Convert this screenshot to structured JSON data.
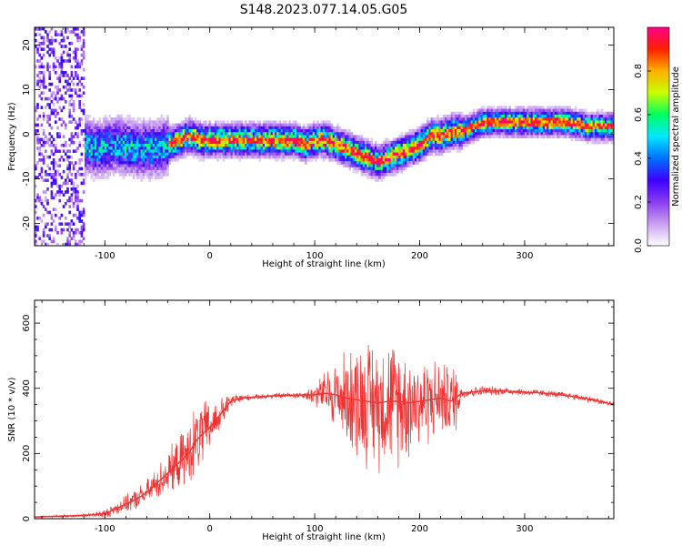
{
  "title": "S148.2023.077.14.05.G05",
  "chart_data": [
    {
      "type": "heatmap",
      "xlabel": "Height of straight line (km)",
      "ylabel": "Frequency (Hz)",
      "xlim": [
        -167,
        385
      ],
      "ylim": [
        -25,
        24
      ],
      "xticks": [
        -100,
        0,
        100,
        200,
        300
      ],
      "yticks": [
        -20,
        -10,
        0,
        10,
        20
      ],
      "colorbar": {
        "label": "Normalized spectral amplitude",
        "range": [
          0,
          1
        ],
        "ticks": [
          "0.0",
          "0.2",
          "0.4",
          "0.6",
          "0.8"
        ],
        "colors": [
          "#ffffff",
          "#c9a0f0",
          "#8a3cf0",
          "#3c00ff",
          "#0070ff",
          "#00e8ff",
          "#00ff60",
          "#c8ff00",
          "#ffb000",
          "#ff2000",
          "#ff0088"
        ]
      },
      "ridge": {
        "x": [
          -125,
          -110,
          -90,
          -70,
          -50,
          -40,
          -30,
          -20,
          -10,
          0,
          20,
          40,
          60,
          80,
          90,
          100,
          110,
          120,
          130,
          140,
          150,
          160,
          170,
          180,
          190,
          200,
          210,
          220,
          230,
          240,
          250,
          260,
          280,
          300,
          320,
          340,
          360,
          385
        ],
        "y": [
          -2,
          -3,
          -2,
          -3,
          -3,
          -2,
          -1,
          0,
          -1,
          -1,
          -1,
          -1,
          -1,
          -1,
          -2,
          -1,
          -1,
          -2,
          -3,
          -4,
          -5,
          -6,
          -5,
          -4,
          -3,
          -2,
          0,
          0,
          1,
          1,
          2,
          3,
          3,
          3,
          3,
          3,
          2,
          2
        ]
      }
    },
    {
      "type": "line",
      "xlabel": "Height of straight line (km)",
      "ylabel": "SNR (10 * v/v)",
      "xlim": [
        -167,
        385
      ],
      "ylim": [
        0,
        670
      ],
      "xticks": [
        -100,
        0,
        100,
        200,
        300
      ],
      "yticks": [
        0,
        200,
        400,
        600
      ],
      "color": "#f03232",
      "x": [
        -167,
        -140,
        -120,
        -100,
        -90,
        -80,
        -70,
        -60,
        -50,
        -40,
        -30,
        -20,
        -15,
        -10,
        0,
        10,
        20,
        30,
        50,
        70,
        90,
        100,
        110,
        120,
        130,
        140,
        150,
        160,
        170,
        180,
        190,
        200,
        210,
        220,
        230,
        240,
        260,
        280,
        300,
        320,
        340,
        360,
        385
      ],
      "y": [
        5,
        8,
        10,
        15,
        30,
        45,
        60,
        80,
        110,
        140,
        170,
        200,
        230,
        250,
        280,
        320,
        360,
        370,
        375,
        378,
        380,
        380,
        385,
        380,
        370,
        365,
        360,
        355,
        360,
        360,
        355,
        360,
        365,
        370,
        360,
        385,
        392,
        392,
        388,
        385,
        378,
        368,
        350
      ],
      "noise": {
        "x": [
          -167,
          -120,
          -100,
          -60,
          -30,
          -10,
          0,
          20,
          40,
          90,
          100,
          120,
          140,
          160,
          180,
          200,
          220,
          235,
          240,
          300,
          385
        ],
        "amplitude": [
          3,
          5,
          15,
          45,
          90,
          130,
          90,
          25,
          8,
          12,
          40,
          120,
          210,
          230,
          220,
          170,
          130,
          120,
          20,
          12,
          10
        ]
      }
    }
  ]
}
